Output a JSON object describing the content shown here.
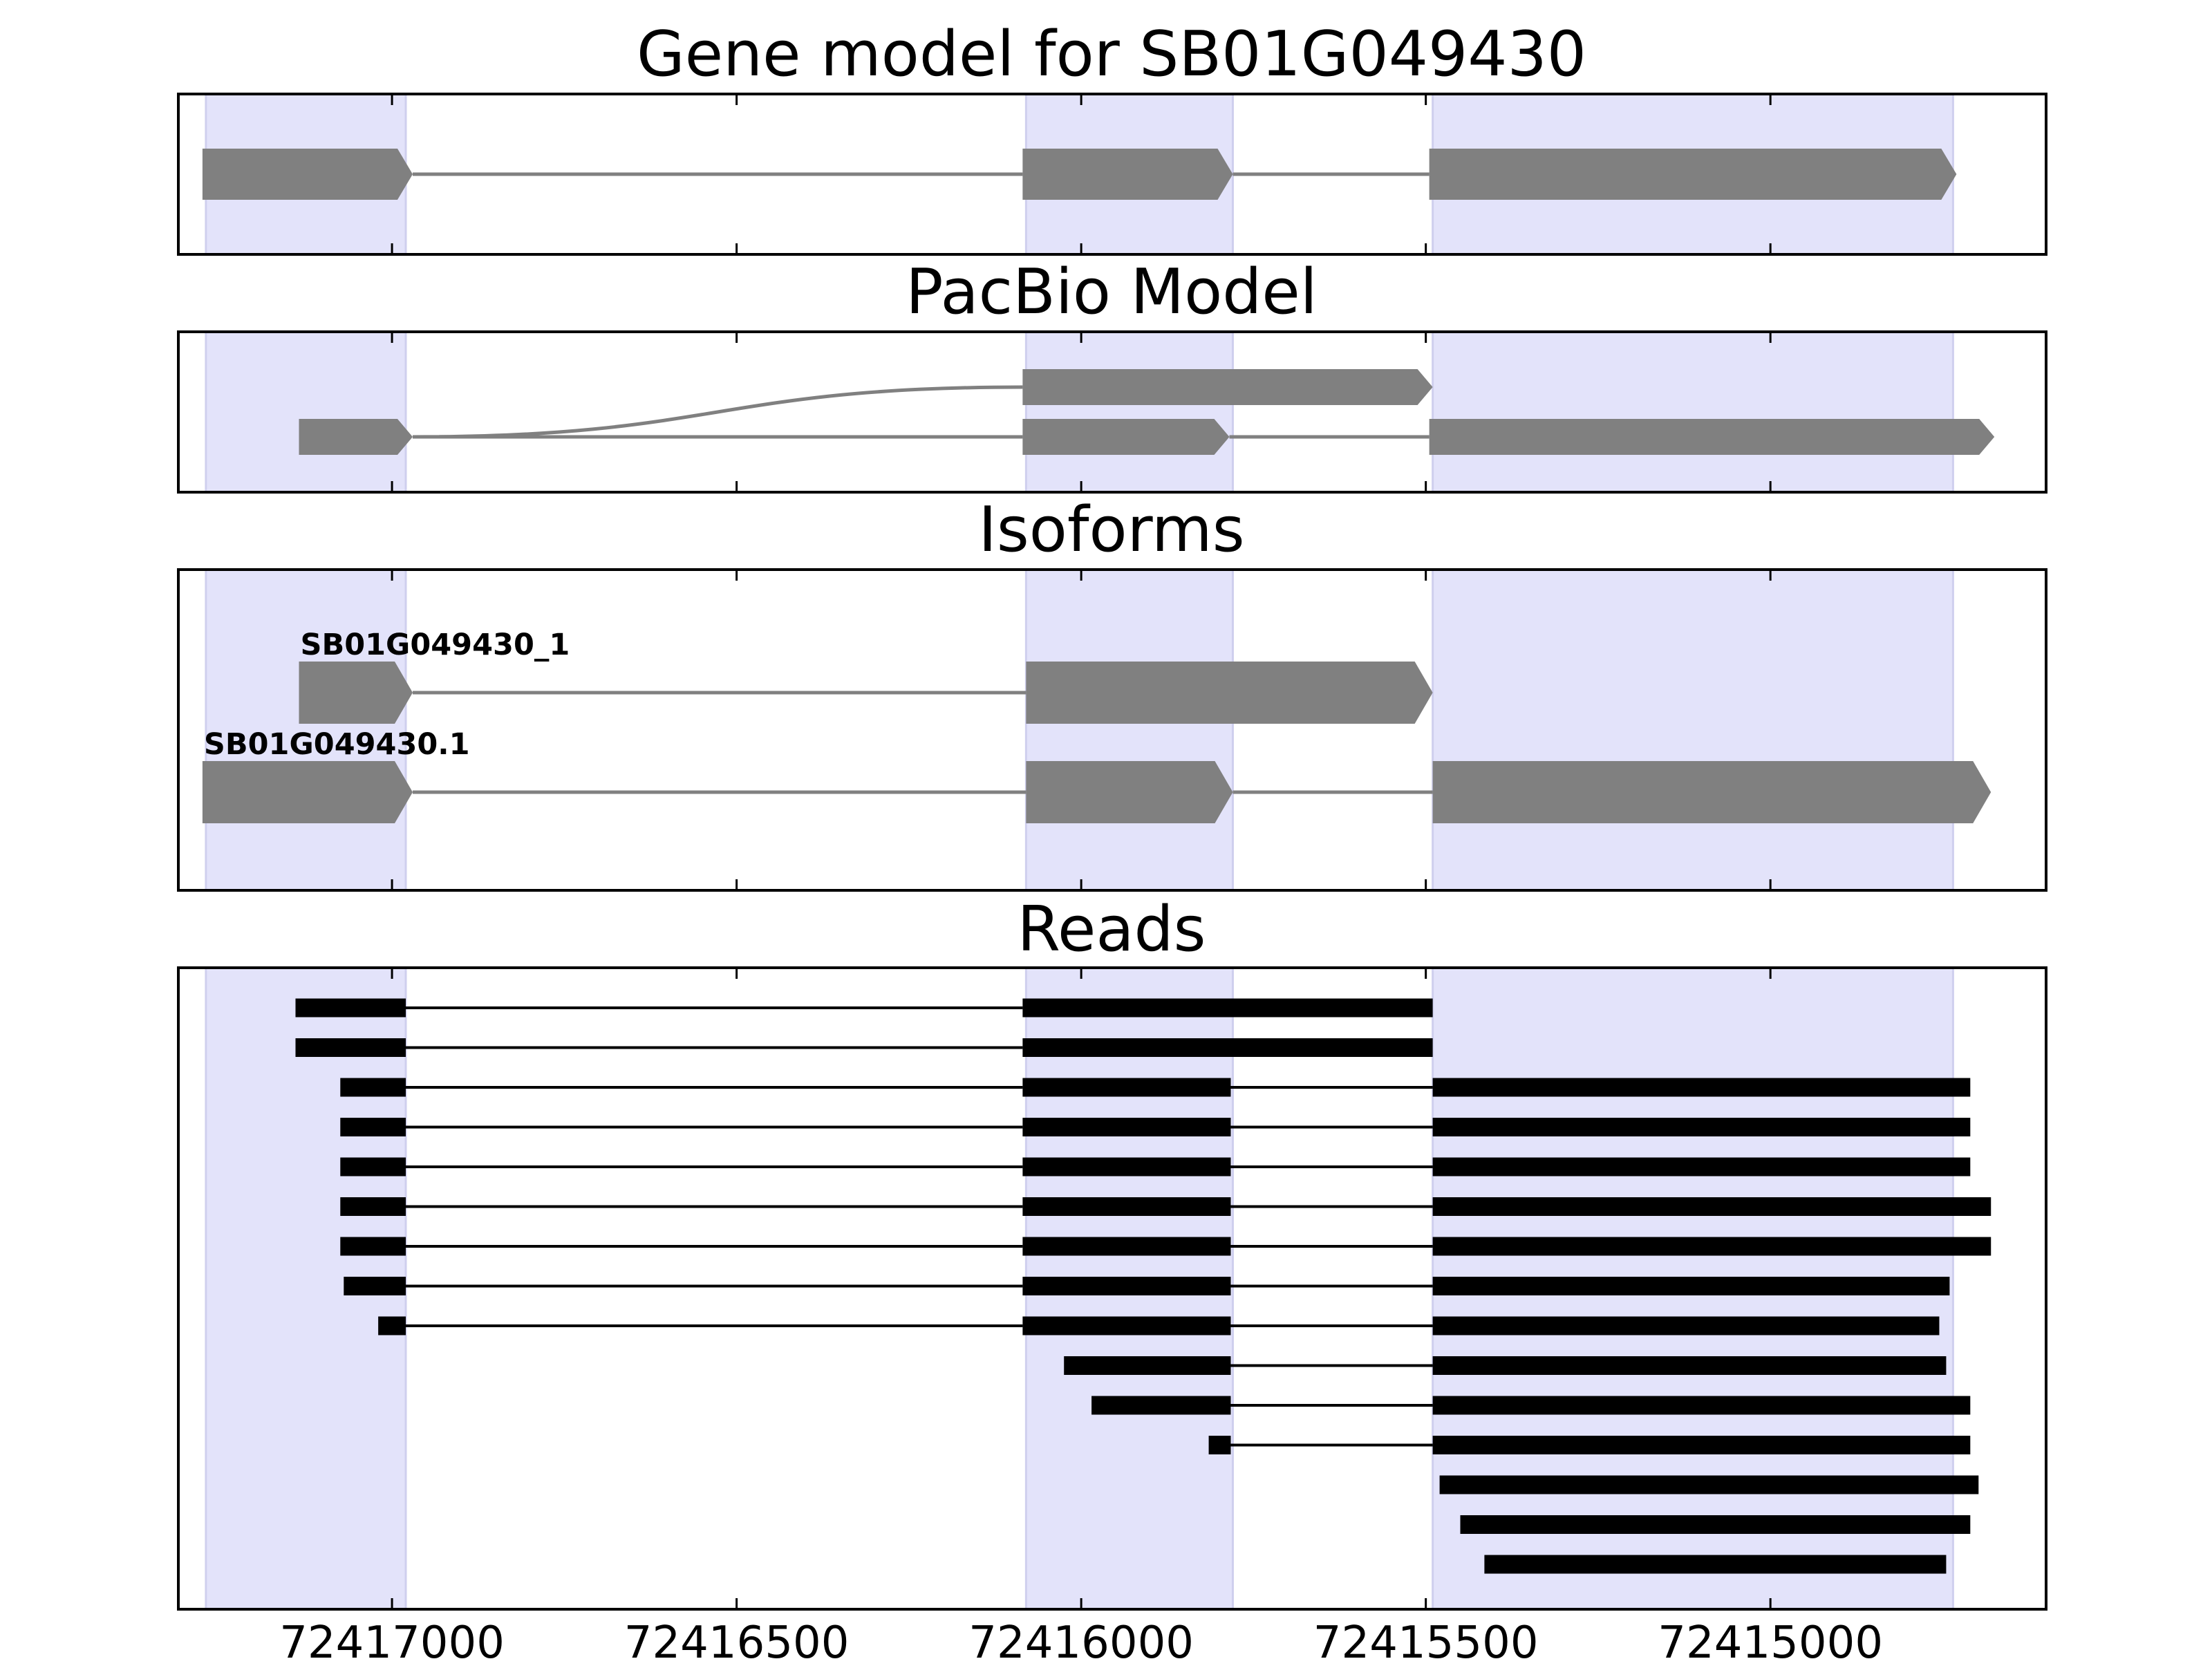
{
  "chart_data": {
    "type": "gene_model",
    "x_reversed": true,
    "xlim": [
      72417310,
      72414600
    ],
    "xticks": [
      72417000,
      72416500,
      72416000,
      72415500,
      72415000
    ],
    "xtick_labels": [
      "72417000",
      "72416500",
      "72416000",
      "72415500",
      "72415000"
    ],
    "highlight_regions": [
      [
        72417270,
        72416980
      ],
      [
        72416080,
        72415780
      ],
      [
        72415490,
        72414735
      ]
    ],
    "panels": [
      {
        "id": "gene-model",
        "title": "Gene model for SB01G049430",
        "transcripts": [
          {
            "label": "",
            "exons": [
              [
                72417275,
                72416970
              ],
              [
                72416085,
                72415780
              ],
              [
                72415495,
                72414730
              ]
            ]
          }
        ]
      },
      {
        "id": "pacbio-model",
        "title": "PacBio Model",
        "transcripts": [
          {
            "label": "",
            "exons": [
              [
                72417135,
                72416970
              ],
              [
                72416085,
                72415785
              ],
              [
                72415495,
                72414675
              ]
            ]
          },
          {
            "label": "",
            "exons": [
              [
                72416085,
                72415490
              ]
            ]
          }
        ]
      },
      {
        "id": "isoforms",
        "title": "Isoforms",
        "transcripts": [
          {
            "label": "SB01G049430_1",
            "exons": [
              [
                72417135,
                72416970
              ],
              [
                72416080,
                72415490
              ]
            ]
          },
          {
            "label": "SB01G049430.1",
            "exons": [
              [
                72417275,
                72416970
              ],
              [
                72416080,
                72415780
              ],
              [
                72415490,
                72414680
              ]
            ]
          }
        ]
      },
      {
        "id": "reads",
        "title": "Reads",
        "reads": [
          [
            [
              72417140,
              72416980
            ],
            [
              72416085,
              72415490
            ]
          ],
          [
            [
              72417140,
              72416980
            ],
            [
              72416085,
              72415490
            ]
          ],
          [
            [
              72417075,
              72416980
            ],
            [
              72416085,
              72415783
            ],
            [
              72415490,
              72414710
            ]
          ],
          [
            [
              72417075,
              72416980
            ],
            [
              72416085,
              72415783
            ],
            [
              72415490,
              72414710
            ]
          ],
          [
            [
              72417075,
              72416980
            ],
            [
              72416085,
              72415783
            ],
            [
              72415490,
              72414710
            ]
          ],
          [
            [
              72417075,
              72416980
            ],
            [
              72416085,
              72415783
            ],
            [
              72415490,
              72414680
            ]
          ],
          [
            [
              72417075,
              72416980
            ],
            [
              72416085,
              72415783
            ],
            [
              72415490,
              72414680
            ]
          ],
          [
            [
              72417070,
              72416980
            ],
            [
              72416085,
              72415783
            ],
            [
              72415490,
              72414740
            ]
          ],
          [
            [
              72417020,
              72416980
            ],
            [
              72416085,
              72415783
            ],
            [
              72415490,
              72414755
            ]
          ],
          [
            [
              72416025,
              72415783
            ],
            [
              72415490,
              72414745
            ]
          ],
          [
            [
              72415985,
              72415783
            ],
            [
              72415490,
              72414710
            ]
          ],
          [
            [
              72415815,
              72415783
            ],
            [
              72415490,
              72414710
            ]
          ],
          [
            [
              72415480,
              72414698
            ]
          ],
          [
            [
              72415450,
              72414710
            ]
          ],
          [
            [
              72415415,
              72414745
            ]
          ]
        ]
      }
    ]
  }
}
